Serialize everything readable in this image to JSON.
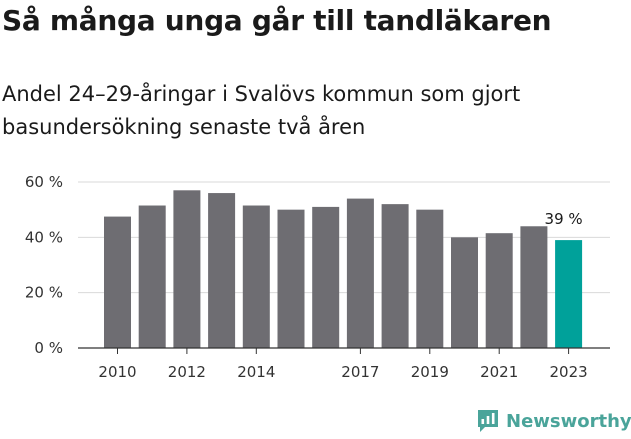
{
  "chart_data": {
    "type": "bar",
    "title": "Så många unga går till tandläkaren",
    "subtitle": "Andel 24–29-åringar i Svalövs kommun som gjort basundersökning senaste två åren",
    "categories": [
      "2010",
      "2011",
      "2012",
      "2013",
      "2014",
      "2015",
      "2016",
      "2017",
      "2018",
      "2019",
      "2020",
      "2021",
      "2022",
      "2023"
    ],
    "values": [
      47.5,
      51.5,
      57,
      56,
      51.5,
      50,
      51,
      54,
      52,
      50,
      40,
      41.5,
      44,
      39
    ],
    "x_tick_labels": [
      "2010",
      "2012",
      "2014",
      "2017",
      "2019",
      "2021",
      "2023"
    ],
    "y_ticks": [
      0,
      20,
      40,
      60
    ],
    "y_tick_labels": [
      "0 %",
      "20 %",
      "40 %",
      "60 %"
    ],
    "ylim": [
      0,
      60
    ],
    "highlight": {
      "category": "2023",
      "label": "39 %"
    },
    "colors": {
      "bar": "#6e6d72",
      "highlight": "#00a19a",
      "grid": "#d9d9d9",
      "axis": "#333333"
    },
    "grid": true
  },
  "branding": {
    "logo_text": "Newsworthy",
    "logo_icon": "chart-bubble-icon",
    "logo_color": "#4aa49a"
  }
}
